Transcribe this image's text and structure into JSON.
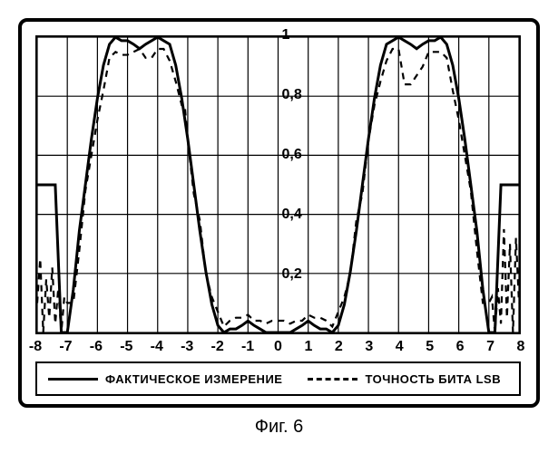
{
  "chart": {
    "type": "line",
    "xlim": [
      -8,
      8
    ],
    "ylim": [
      0,
      1
    ],
    "xtick_step": 1,
    "ytick_step": 0.2,
    "xticks": [
      -8,
      -7,
      -6,
      -5,
      -4,
      -3,
      -2,
      -1,
      0,
      1,
      2,
      3,
      4,
      5,
      6,
      7,
      8
    ],
    "yticks": [
      0,
      0.2,
      0.4,
      0.6,
      0.8,
      1
    ],
    "ytick_labels": [
      "0",
      "0,2",
      "0,4",
      "0,6",
      "0,8",
      "1"
    ],
    "background_color": "#ffffff",
    "grid_color": "#000000",
    "grid_width": 1.2,
    "axis_color": "#000000",
    "tick_fontsize": 16,
    "line_color": "#000000",
    "solid_width": 3,
    "dashed_width": 2.2,
    "dash_pattern": "7,6",
    "series_solid": {
      "label": "ФАКТИЧЕСКОЕ ИЗМЕРЕНИЕ",
      "x": [
        -8,
        -7.8,
        -7.6,
        -7.4,
        -7.2,
        -7.0,
        -6.8,
        -6.6,
        -6.4,
        -6.2,
        -6.0,
        -5.8,
        -5.6,
        -5.4,
        -5.2,
        -5.0,
        -4.8,
        -4.6,
        -4.4,
        -4.2,
        -4.0,
        -3.8,
        -3.6,
        -3.4,
        -3.2,
        -3.0,
        -2.8,
        -2.6,
        -2.4,
        -2.2,
        -2.0,
        -1.8,
        -1.6,
        -1.4,
        -1.2,
        -1.0,
        -0.8,
        -0.6,
        -0.4,
        -0.2,
        0.0,
        0.2,
        0.4,
        0.6,
        0.8,
        1.0,
        1.2,
        1.4,
        1.6,
        1.8,
        2.0,
        2.2,
        2.4,
        2.6,
        2.8,
        3.0,
        3.2,
        3.4,
        3.6,
        3.8,
        4.0,
        4.2,
        4.4,
        4.6,
        4.8,
        5.0,
        5.2,
        5.4,
        5.6,
        5.8,
        6.0,
        6.2,
        6.4,
        6.6,
        6.8,
        7.0,
        7.2,
        7.4,
        7.6,
        7.8,
        8.0
      ],
      "y": [
        0.5,
        0.5,
        0.5,
        0.5,
        0.0,
        0.0,
        0.146,
        0.345,
        0.5,
        0.655,
        0.793,
        0.905,
        0.976,
        1.0,
        0.988,
        0.988,
        0.976,
        0.961,
        0.976,
        0.988,
        1.0,
        0.988,
        0.976,
        0.905,
        0.793,
        0.655,
        0.5,
        0.345,
        0.207,
        0.095,
        0.024,
        0.0,
        0.012,
        0.012,
        0.024,
        0.039,
        0.024,
        0.012,
        0.0,
        0.0,
        0.0,
        0.0,
        0.0,
        0.012,
        0.024,
        0.039,
        0.024,
        0.012,
        0.012,
        0.0,
        0.024,
        0.095,
        0.207,
        0.345,
        0.5,
        0.655,
        0.793,
        0.905,
        0.976,
        0.988,
        1.0,
        0.988,
        0.976,
        0.961,
        0.976,
        0.988,
        0.988,
        1.0,
        0.976,
        0.905,
        0.793,
        0.655,
        0.5,
        0.345,
        0.146,
        0.0,
        0.0,
        0.5,
        0.5,
        0.5,
        0.5
      ]
    },
    "series_dashed": {
      "label": "ТОЧНОСТЬ БИТА LSB",
      "x": [
        -8.0,
        -7.9,
        -7.8,
        -7.7,
        -7.6,
        -7.5,
        -7.4,
        -7.3,
        -7.2,
        -7.1,
        -7.0,
        -6.8,
        -6.6,
        -6.4,
        -6.2,
        -6.0,
        -5.8,
        -5.6,
        -5.4,
        -5.2,
        -5.0,
        -4.8,
        -4.6,
        -4.4,
        -4.2,
        -4.0,
        -3.8,
        -3.6,
        -3.4,
        -3.2,
        -3.1,
        -3.0,
        -2.8,
        -2.6,
        -2.4,
        -2.2,
        -2.0,
        -1.8,
        -1.6,
        -1.4,
        -1.2,
        -1.0,
        -0.8,
        -0.6,
        -0.4,
        -0.2,
        0.0,
        0.2,
        0.4,
        0.6,
        0.8,
        1.0,
        1.2,
        1.4,
        1.6,
        1.8,
        2.0,
        2.2,
        2.4,
        2.6,
        2.8,
        3.0,
        3.2,
        3.4,
        3.6,
        3.8,
        4.0,
        4.2,
        4.4,
        4.6,
        4.8,
        5.0,
        5.2,
        5.4,
        5.6,
        5.8,
        6.0,
        6.2,
        6.4,
        6.6,
        6.8,
        7.0,
        7.1,
        7.2,
        7.3,
        7.4,
        7.5,
        7.6,
        7.7,
        7.8,
        7.9,
        8.0
      ],
      "y": [
        0.1,
        0.25,
        0.0,
        0.18,
        0.05,
        0.22,
        0.03,
        0.15,
        0.0,
        0.12,
        0.1,
        0.1,
        0.28,
        0.48,
        0.6,
        0.72,
        0.82,
        0.93,
        0.95,
        0.94,
        0.94,
        0.95,
        0.96,
        0.93,
        0.93,
        0.96,
        0.96,
        0.92,
        0.85,
        0.77,
        0.77,
        0.65,
        0.47,
        0.38,
        0.2,
        0.12,
        0.07,
        0.02,
        0.04,
        0.05,
        0.05,
        0.06,
        0.04,
        0.04,
        0.03,
        0.04,
        0.04,
        0.04,
        0.03,
        0.04,
        0.04,
        0.06,
        0.05,
        0.05,
        0.04,
        0.02,
        0.07,
        0.12,
        0.2,
        0.38,
        0.47,
        0.65,
        0.77,
        0.85,
        0.92,
        0.96,
        0.96,
        0.84,
        0.84,
        0.87,
        0.9,
        0.95,
        0.95,
        0.95,
        0.93,
        0.82,
        0.72,
        0.6,
        0.48,
        0.28,
        0.1,
        0.1,
        0.12,
        0.0,
        0.15,
        0.03,
        0.35,
        0.05,
        0.3,
        0.0,
        0.32,
        0.1
      ]
    }
  },
  "legend": {
    "item1": "ФАКТИЧЕСКОЕ ИЗМЕРЕНИЕ",
    "item2": "ТОЧНОСТЬ БИТА LSB"
  },
  "caption": "Фиг. 6"
}
